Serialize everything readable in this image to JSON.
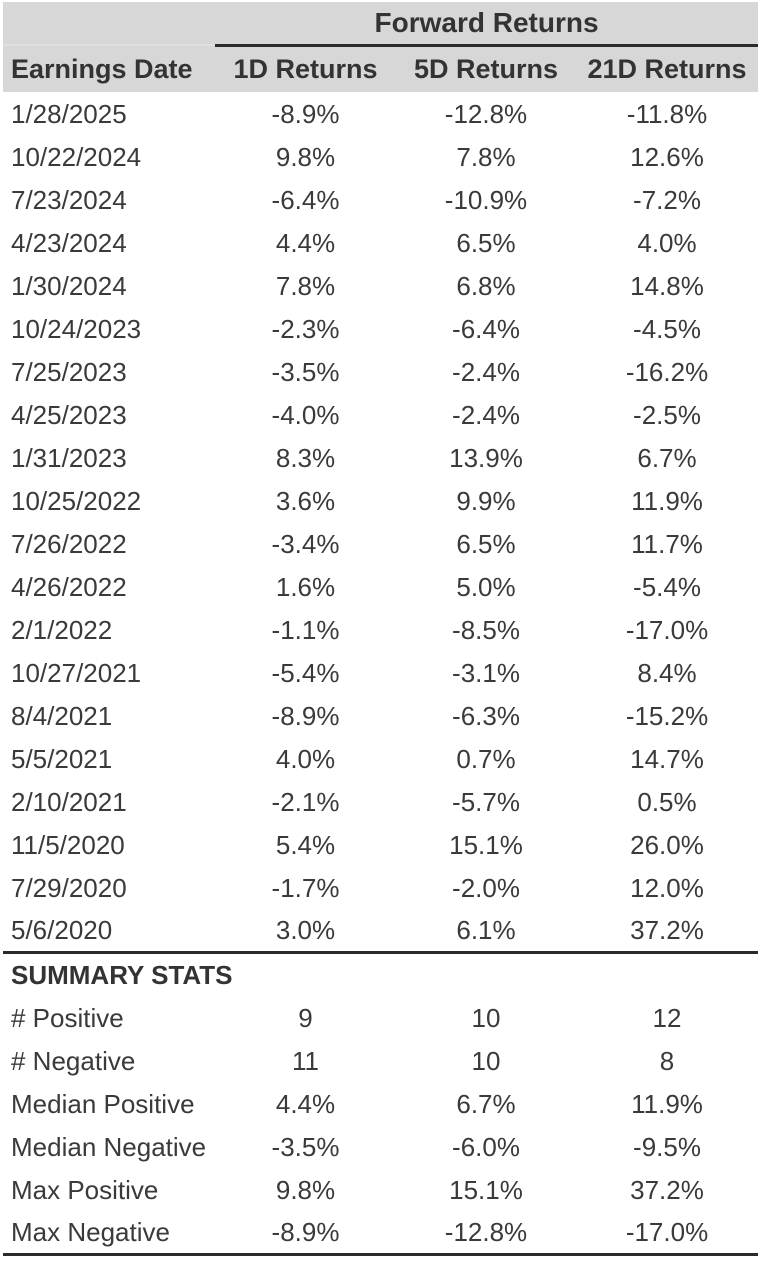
{
  "colors": {
    "header_bg": "#d7d7d7",
    "text": "#3a3a3a",
    "rule_line": "#2a2a2a",
    "body_bg": "#ffffff"
  },
  "table": {
    "spanner": "Forward Returns",
    "columns": [
      "Earnings Date",
      "1D Returns",
      "5D Returns",
      "21D Returns"
    ],
    "rows": [
      [
        "1/28/2025",
        "-8.9%",
        "-12.8%",
        "-11.8%"
      ],
      [
        "10/22/2024",
        "9.8%",
        "7.8%",
        "12.6%"
      ],
      [
        "7/23/2024",
        "-6.4%",
        "-10.9%",
        "-7.2%"
      ],
      [
        "4/23/2024",
        "4.4%",
        "6.5%",
        "4.0%"
      ],
      [
        "1/30/2024",
        "7.8%",
        "6.8%",
        "14.8%"
      ],
      [
        "10/24/2023",
        "-2.3%",
        "-6.4%",
        "-4.5%"
      ],
      [
        "7/25/2023",
        "-3.5%",
        "-2.4%",
        "-16.2%"
      ],
      [
        "4/25/2023",
        "-4.0%",
        "-2.4%",
        "-2.5%"
      ],
      [
        "1/31/2023",
        "8.3%",
        "13.9%",
        "6.7%"
      ],
      [
        "10/25/2022",
        "3.6%",
        "9.9%",
        "11.9%"
      ],
      [
        "7/26/2022",
        "-3.4%",
        "6.5%",
        "11.7%"
      ],
      [
        "4/26/2022",
        "1.6%",
        "5.0%",
        "-5.4%"
      ],
      [
        "2/1/2022",
        "-1.1%",
        "-8.5%",
        "-17.0%"
      ],
      [
        "10/27/2021",
        "-5.4%",
        "-3.1%",
        "8.4%"
      ],
      [
        "8/4/2021",
        "-8.9%",
        "-6.3%",
        "-15.2%"
      ],
      [
        "5/5/2021",
        "4.0%",
        "0.7%",
        "14.7%"
      ],
      [
        "2/10/2021",
        "-2.1%",
        "-5.7%",
        "0.5%"
      ],
      [
        "11/5/2020",
        "5.4%",
        "15.1%",
        "26.0%"
      ],
      [
        "7/29/2020",
        "-1.7%",
        "-2.0%",
        "12.0%"
      ],
      [
        "5/6/2020",
        "3.0%",
        "6.1%",
        "37.2%"
      ]
    ],
    "summary_title": "SUMMARY STATS",
    "summary_rows": [
      [
        "# Positive",
        "9",
        "10",
        "12"
      ],
      [
        "# Negative",
        "11",
        "10",
        "8"
      ],
      [
        "Median Positive",
        "4.4%",
        "6.7%",
        "11.9%"
      ],
      [
        "Median Negative",
        "-3.5%",
        "-6.0%",
        "-9.5%"
      ],
      [
        "Max Positive",
        "9.8%",
        "15.1%",
        "37.2%"
      ],
      [
        "Max Negative",
        "-8.9%",
        "-12.8%",
        "-17.0%"
      ]
    ]
  },
  "chart_data": {
    "type": "table",
    "title": "Forward Returns",
    "columns": [
      "Earnings Date",
      "1D Returns",
      "5D Returns",
      "21D Returns"
    ],
    "rows": [
      {
        "date": "1/28/2025",
        "d1": -8.9,
        "d5": -12.8,
        "d21": -11.8
      },
      {
        "date": "10/22/2024",
        "d1": 9.8,
        "d5": 7.8,
        "d21": 12.6
      },
      {
        "date": "7/23/2024",
        "d1": -6.4,
        "d5": -10.9,
        "d21": -7.2
      },
      {
        "date": "4/23/2024",
        "d1": 4.4,
        "d5": 6.5,
        "d21": 4.0
      },
      {
        "date": "1/30/2024",
        "d1": 7.8,
        "d5": 6.8,
        "d21": 14.8
      },
      {
        "date": "10/24/2023",
        "d1": -2.3,
        "d5": -6.4,
        "d21": -4.5
      },
      {
        "date": "7/25/2023",
        "d1": -3.5,
        "d5": -2.4,
        "d21": -16.2
      },
      {
        "date": "4/25/2023",
        "d1": -4.0,
        "d5": -2.4,
        "d21": -2.5
      },
      {
        "date": "1/31/2023",
        "d1": 8.3,
        "d5": 13.9,
        "d21": 6.7
      },
      {
        "date": "10/25/2022",
        "d1": 3.6,
        "d5": 9.9,
        "d21": 11.9
      },
      {
        "date": "7/26/2022",
        "d1": -3.4,
        "d5": 6.5,
        "d21": 11.7
      },
      {
        "date": "4/26/2022",
        "d1": 1.6,
        "d5": 5.0,
        "d21": -5.4
      },
      {
        "date": "2/1/2022",
        "d1": -1.1,
        "d5": -8.5,
        "d21": -17.0
      },
      {
        "date": "10/27/2021",
        "d1": -5.4,
        "d5": -3.1,
        "d21": 8.4
      },
      {
        "date": "8/4/2021",
        "d1": -8.9,
        "d5": -6.3,
        "d21": -15.2
      },
      {
        "date": "5/5/2021",
        "d1": 4.0,
        "d5": 0.7,
        "d21": 14.7
      },
      {
        "date": "2/10/2021",
        "d1": -2.1,
        "d5": -5.7,
        "d21": 0.5
      },
      {
        "date": "11/5/2020",
        "d1": 5.4,
        "d5": 15.1,
        "d21": 26.0
      },
      {
        "date": "7/29/2020",
        "d1": -1.7,
        "d5": -2.0,
        "d21": 12.0
      },
      {
        "date": "5/6/2020",
        "d1": 3.0,
        "d5": 6.1,
        "d21": 37.2
      }
    ],
    "summary": {
      "num_positive": {
        "d1": 9,
        "d5": 10,
        "d21": 12
      },
      "num_negative": {
        "d1": 11,
        "d5": 10,
        "d21": 8
      },
      "median_positive": {
        "d1": 4.4,
        "d5": 6.7,
        "d21": 11.9
      },
      "median_negative": {
        "d1": -3.5,
        "d5": -6.0,
        "d21": -9.5
      },
      "max_positive": {
        "d1": 9.8,
        "d5": 15.1,
        "d21": 37.2
      },
      "max_negative": {
        "d1": -8.9,
        "d5": -12.8,
        "d21": -17.0
      }
    }
  }
}
